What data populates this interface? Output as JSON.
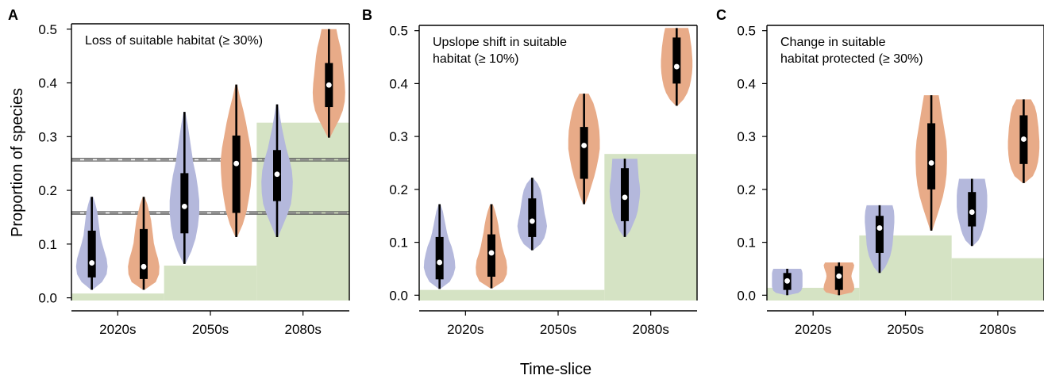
{
  "figure": {
    "ylabel": "Proportion of species",
    "xlabel": "Time-slice"
  },
  "colors": {
    "violin_a": "#b4b8dc",
    "violin_b": "#e8ab88",
    "band": "#d5e3c4",
    "box": "#000000",
    "median": "#ffffff",
    "hline": "#555555"
  },
  "chart_data": [
    {
      "type": "violin",
      "panel": "A",
      "annotation": "Loss of suitable habitat (≥ 30%)",
      "categories": [
        "2020s",
        "2050s",
        "2080s"
      ],
      "ylim": [
        -0.005,
        0.51
      ],
      "yticks": [
        "0.0",
        "0.1",
        "0.2",
        "0.3",
        "0.4",
        "0.5"
      ],
      "xlim": [
        0.5,
        3.5
      ],
      "background_steps": [
        {
          "x0": 0.5,
          "x1": 1.5,
          "y": 0.008
        },
        {
          "x0": 1.5,
          "x1": 2.5,
          "y": 0.06
        },
        {
          "x0": 2.5,
          "x1": 3.5,
          "y": 0.326
        }
      ],
      "hlines": [
        0.257,
        0.158
      ],
      "series": [
        {
          "group": 1,
          "values": [
            {
              "min": 0.015,
              "q1": 0.038,
              "median": 0.065,
              "q3": 0.125,
              "max": 0.188,
              "widths": [
                0.02,
                0.22,
                0.32,
                0.34,
                0.32,
                0.27,
                0.22,
                0.18,
                0.16,
                0.14,
                0.12,
                0.08,
                0.03
              ]
            },
            {
              "min": 0.063,
              "q1": 0.12,
              "median": 0.17,
              "q3": 0.232,
              "max": 0.346,
              "widths": [
                0.02,
                0.15,
                0.24,
                0.29,
                0.32,
                0.32,
                0.29,
                0.25,
                0.19,
                0.15,
                0.11,
                0.07,
                0.02
              ]
            },
            {
              "min": 0.113,
              "q1": 0.18,
              "median": 0.23,
              "q3": 0.275,
              "max": 0.36,
              "widths": [
                0.02,
                0.12,
                0.22,
                0.3,
                0.33,
                0.34,
                0.32,
                0.27,
                0.2,
                0.15,
                0.1,
                0.06,
                0.02
              ]
            }
          ]
        },
        {
          "group": 2,
          "values": [
            {
              "min": 0.015,
              "q1": 0.035,
              "median": 0.058,
              "q3": 0.128,
              "max": 0.188,
              "widths": [
                0.02,
                0.26,
                0.33,
                0.34,
                0.31,
                0.26,
                0.22,
                0.2,
                0.18,
                0.16,
                0.12,
                0.08,
                0.02
              ]
            },
            {
              "min": 0.113,
              "q1": 0.158,
              "median": 0.25,
              "q3": 0.302,
              "max": 0.397,
              "widths": [
                0.02,
                0.14,
                0.22,
                0.27,
                0.31,
                0.33,
                0.34,
                0.31,
                0.26,
                0.21,
                0.15,
                0.08,
                0.02
              ]
            },
            {
              "min": 0.298,
              "q1": 0.355,
              "median": 0.396,
              "q3": 0.437,
              "max": 0.5,
              "widths": [
                0.02,
                0.12,
                0.22,
                0.3,
                0.34,
                0.35,
                0.34,
                0.32,
                0.3,
                0.28,
                0.25,
                0.2,
                0.16
              ]
            }
          ]
        }
      ]
    },
    {
      "type": "violin",
      "panel": "B",
      "annotation": "Upslope shift in suitable habitat (≥ 10%)",
      "annotation_lines": [
        "Upslope shift in suitable",
        "habitat (≥ 10%)"
      ],
      "categories": [
        "2020s",
        "2050s",
        "2080s"
      ],
      "ylim": [
        -0.01,
        0.51
      ],
      "yticks": [
        "0.0",
        "0.1",
        "0.2",
        "0.3",
        "0.4",
        "0.5"
      ],
      "xlim": [
        0.5,
        3.5
      ],
      "background_steps": [
        {
          "x0": 0.5,
          "x1": 2.5,
          "y": 0.01
        },
        {
          "x0": 2.5,
          "x1": 3.5,
          "y": 0.267
        }
      ],
      "hlines": [],
      "series": [
        {
          "group": 1,
          "values": [
            {
              "min": 0.012,
              "q1": 0.03,
              "median": 0.062,
              "q3": 0.11,
              "max": 0.172,
              "widths": [
                0.02,
                0.22,
                0.3,
                0.34,
                0.33,
                0.3,
                0.26,
                0.2,
                0.16,
                0.13,
                0.1,
                0.07,
                0.02
              ]
            },
            {
              "min": 0.085,
              "q1": 0.11,
              "median": 0.14,
              "q3": 0.183,
              "max": 0.222,
              "widths": [
                0.02,
                0.18,
                0.26,
                0.3,
                0.32,
                0.3,
                0.27,
                0.25,
                0.23,
                0.21,
                0.18,
                0.12,
                0.02
              ]
            },
            {
              "min": 0.11,
              "q1": 0.14,
              "median": 0.185,
              "q3": 0.24,
              "max": 0.258,
              "widths": [
                0.02,
                0.12,
                0.18,
                0.24,
                0.28,
                0.3,
                0.32,
                0.33,
                0.32,
                0.3,
                0.29,
                0.28,
                0.27
              ]
            }
          ]
        },
        {
          "group": 2,
          "values": [
            {
              "min": 0.013,
              "q1": 0.035,
              "median": 0.08,
              "q3": 0.115,
              "max": 0.172,
              "widths": [
                0.02,
                0.26,
                0.33,
                0.34,
                0.32,
                0.27,
                0.23,
                0.2,
                0.17,
                0.15,
                0.12,
                0.08,
                0.03
              ]
            },
            {
              "min": 0.172,
              "q1": 0.22,
              "median": 0.283,
              "q3": 0.318,
              "max": 0.381,
              "widths": [
                0.02,
                0.1,
                0.16,
                0.22,
                0.27,
                0.31,
                0.34,
                0.34,
                0.33,
                0.3,
                0.26,
                0.2,
                0.1
              ]
            },
            {
              "min": 0.358,
              "q1": 0.4,
              "median": 0.432,
              "q3": 0.487,
              "max": 0.505,
              "widths": [
                0.02,
                0.15,
                0.23,
                0.28,
                0.31,
                0.33,
                0.34,
                0.34,
                0.33,
                0.32,
                0.3,
                0.28,
                0.25
              ]
            }
          ]
        }
      ]
    },
    {
      "type": "violin",
      "panel": "C",
      "annotation": "Change in suitable habitat protected (≥ 30%)",
      "annotation_lines": [
        "Change in suitable",
        "habitat protected (≥ 30%)"
      ],
      "categories": [
        "2020s",
        "2050s",
        "2080s"
      ],
      "ylim": [
        -0.01,
        0.51
      ],
      "yticks": [
        "0.0",
        "0.1",
        "0.2",
        "0.3",
        "0.4",
        "0.5"
      ],
      "xlim": [
        0.5,
        3.5
      ],
      "background_steps": [
        {
          "x0": 0.5,
          "x1": 1.5,
          "y": 0.014
        },
        {
          "x0": 1.5,
          "x1": 2.5,
          "y": 0.113
        },
        {
          "x0": 2.5,
          "x1": 3.5,
          "y": 0.07
        }
      ],
      "hlines": [],
      "series": [
        {
          "group": 1,
          "values": [
            {
              "min": 0.0,
              "q1": 0.01,
              "median": 0.027,
              "q3": 0.042,
              "max": 0.05,
              "widths": [
                0.02,
                0.24,
                0.3,
                0.32,
                0.33,
                0.33,
                0.33,
                0.33,
                0.33,
                0.33,
                0.33,
                0.32,
                0.3
              ]
            },
            {
              "min": 0.042,
              "q1": 0.08,
              "median": 0.127,
              "q3": 0.15,
              "max": 0.17,
              "widths": [
                0.02,
                0.12,
                0.18,
                0.23,
                0.26,
                0.28,
                0.29,
                0.3,
                0.31,
                0.32,
                0.32,
                0.31,
                0.28
              ]
            },
            {
              "min": 0.093,
              "q1": 0.13,
              "median": 0.157,
              "q3": 0.195,
              "max": 0.22,
              "widths": [
                0.02,
                0.14,
                0.2,
                0.24,
                0.27,
                0.3,
                0.32,
                0.33,
                0.33,
                0.33,
                0.32,
                0.3,
                0.28
              ]
            }
          ]
        },
        {
          "group": 2,
          "values": [
            {
              "min": 0.0,
              "q1": 0.01,
              "median": 0.036,
              "q3": 0.055,
              "max": 0.062,
              "widths": [
                0.02,
                0.28,
                0.33,
                0.33,
                0.32,
                0.3,
                0.28,
                0.27,
                0.28,
                0.3,
                0.32,
                0.33,
                0.3
              ]
            },
            {
              "min": 0.122,
              "q1": 0.2,
              "median": 0.25,
              "q3": 0.325,
              "max": 0.378,
              "widths": [
                0.02,
                0.1,
                0.18,
                0.25,
                0.3,
                0.33,
                0.34,
                0.34,
                0.32,
                0.28,
                0.24,
                0.2,
                0.16
              ]
            },
            {
              "min": 0.212,
              "q1": 0.248,
              "median": 0.295,
              "q3": 0.34,
              "max": 0.37,
              "widths": [
                0.02,
                0.2,
                0.27,
                0.31,
                0.33,
                0.34,
                0.34,
                0.33,
                0.32,
                0.3,
                0.28,
                0.24,
                0.16
              ]
            }
          ]
        }
      ]
    }
  ]
}
